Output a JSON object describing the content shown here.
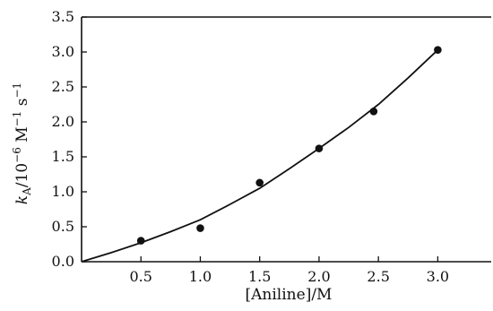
{
  "chart_data": {
    "type": "scatter",
    "xlabel": "[Aniline]/M",
    "ylabel": "kA/10−6 M−1 s−1",
    "ylabel_parts": {
      "k": "k",
      "sub": "A",
      "div": "/10",
      "exp1": "−6",
      "unit1": " M",
      "exp2": "−1",
      "unit2": " s",
      "exp3": "−1"
    },
    "xlim": [
      0,
      3.45
    ],
    "ylim": [
      0,
      3.5
    ],
    "x_ticks": [
      "0.5",
      "1.0",
      "1.5",
      "2.0",
      "2.5",
      "3.0"
    ],
    "x_tick_values": [
      0.5,
      1.0,
      1.5,
      2.0,
      2.5,
      3.0
    ],
    "y_ticks": [
      "0.0",
      "0.5",
      "1.0",
      "1.5",
      "2.0",
      "2.5",
      "3.0",
      "3.5"
    ],
    "y_tick_values": [
      0,
      0.5,
      1.0,
      1.5,
      2.0,
      2.5,
      3.0,
      3.5
    ],
    "grid": false,
    "legend": "none",
    "series": [
      {
        "kind": "points",
        "x": [
          0.5,
          1.0,
          1.5,
          2.0,
          2.46,
          3.0
        ],
        "y": [
          0.3,
          0.48,
          1.13,
          1.62,
          2.15,
          3.03
        ]
      },
      {
        "kind": "fit-curve",
        "x": [
          0,
          0.25,
          0.5,
          0.75,
          1.0,
          1.25,
          1.5,
          1.75,
          2.0,
          2.25,
          2.5,
          2.75,
          3.0
        ],
        "y": [
          0,
          0.13,
          0.27,
          0.43,
          0.6,
          0.82,
          1.05,
          1.33,
          1.62,
          1.92,
          2.25,
          2.63,
          3.03
        ]
      }
    ]
  }
}
